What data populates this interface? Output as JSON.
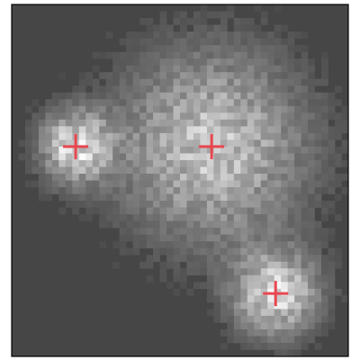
{
  "chart_data": {
    "type": "scatter",
    "x": [
      9.5,
      29.7,
      39.2
    ],
    "y": [
      31,
      31,
      9.3
    ],
    "xlim": [
      0,
      50
    ],
    "ylim": [
      0,
      52
    ],
    "color": "#e8474f"
  }
}
